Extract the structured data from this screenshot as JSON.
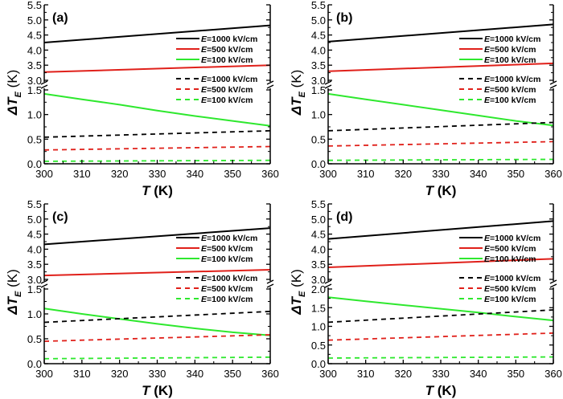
{
  "chart_data": [
    {
      "type": "line",
      "panel_label": "(a)",
      "xlabel_italic": "T",
      "xlabel_rest": " (K)",
      "ylabel_delta": "Δ",
      "ylabel_T": "T",
      "ylabel_sub": "E",
      "ylabel_rest": " (K)",
      "xlim": [
        300,
        360
      ],
      "xticks": [
        "300",
        "310",
        "320",
        "330",
        "340",
        "350",
        "360"
      ],
      "ylim_upper": [
        3.0,
        5.5
      ],
      "yticks_upper": [
        "3.0",
        "3.5",
        "4.0",
        "4.5",
        "5.0",
        "5.5"
      ],
      "ylim_lower": [
        0.0,
        1.5
      ],
      "yticks_lower": [
        "0.0",
        "0.5",
        "1.0",
        "1.5"
      ],
      "axis_break": true,
      "legend_position": "right",
      "series": [
        {
          "name": "E=1000 kV/cm",
          "legend_e": "E",
          "legend_rest": "=1000 kV/cm",
          "color": "#000000",
          "style": "solid",
          "segment": "upper",
          "x": [
            300,
            360
          ],
          "y": [
            4.25,
            4.82
          ]
        },
        {
          "name": "E=500 kV/cm",
          "legend_e": "E",
          "legend_rest": "=500 kV/cm",
          "color": "#e0201a",
          "style": "solid",
          "segment": "upper",
          "x": [
            300,
            360
          ],
          "y": [
            3.27,
            3.5
          ]
        },
        {
          "name": "E=100 kV/cm",
          "legend_e": "E",
          "legend_rest": "=100 kV/cm",
          "color": "#2ee82e",
          "style": "solid",
          "segment": "lower",
          "x": [
            300,
            310,
            320,
            330,
            340,
            350,
            360
          ],
          "y": [
            1.42,
            1.31,
            1.2,
            1.08,
            0.97,
            0.87,
            0.77
          ]
        },
        {
          "name": "E=1000 kV/cm",
          "legend_e": "E",
          "legend_rest": "=1000 kV/cm",
          "color": "#000000",
          "style": "dashed",
          "segment": "lower",
          "x": [
            300,
            360
          ],
          "y": [
            0.54,
            0.67
          ]
        },
        {
          "name": "E=500 kV/cm",
          "legend_e": "E",
          "legend_rest": "=500 kV/cm",
          "color": "#e0201a",
          "style": "dashed",
          "segment": "lower",
          "x": [
            300,
            360
          ],
          "y": [
            0.28,
            0.35
          ]
        },
        {
          "name": "E=100 kV/cm",
          "legend_e": "E",
          "legend_rest": "=100 kV/cm",
          "color": "#2ee82e",
          "style": "dashed",
          "segment": "lower",
          "x": [
            300,
            360
          ],
          "y": [
            0.05,
            0.07
          ]
        }
      ]
    },
    {
      "type": "line",
      "panel_label": "(b)",
      "xlabel_italic": "T",
      "xlabel_rest": " (K)",
      "ylabel_delta": "Δ",
      "ylabel_T": "T",
      "ylabel_sub": "E",
      "ylabel_rest": " (K)",
      "xlim": [
        300,
        360
      ],
      "xticks": [
        "300",
        "310",
        "320",
        "330",
        "340",
        "350",
        "360"
      ],
      "ylim_upper": [
        3.0,
        5.5
      ],
      "yticks_upper": [
        "3.0",
        "3.5",
        "4.0",
        "4.5",
        "5.0",
        "5.5"
      ],
      "ylim_lower": [
        0.0,
        1.5
      ],
      "yticks_lower": [
        "0.0",
        "0.5",
        "1.0",
        "1.5"
      ],
      "axis_break": true,
      "legend_position": "right",
      "series": [
        {
          "name": "E=1000 kV/cm",
          "legend_e": "E",
          "legend_rest": "=1000 kV/cm",
          "color": "#000000",
          "style": "solid",
          "segment": "upper",
          "x": [
            300,
            360
          ],
          "y": [
            4.28,
            4.85
          ]
        },
        {
          "name": "E=500 kV/cm",
          "legend_e": "E",
          "legend_rest": "=500 kV/cm",
          "color": "#e0201a",
          "style": "solid",
          "segment": "upper",
          "x": [
            300,
            360
          ],
          "y": [
            3.3,
            3.56
          ]
        },
        {
          "name": "E=100 kV/cm",
          "legend_e": "E",
          "legend_rest": "=100 kV/cm",
          "color": "#2ee82e",
          "style": "solid",
          "segment": "lower",
          "x": [
            300,
            310,
            320,
            330,
            340,
            350,
            360
          ],
          "y": [
            1.42,
            1.31,
            1.2,
            1.09,
            0.98,
            0.87,
            0.78
          ]
        },
        {
          "name": "E=1000 kV/cm",
          "legend_e": "E",
          "legend_rest": "=1000 kV/cm",
          "color": "#000000",
          "style": "dashed",
          "segment": "lower",
          "x": [
            300,
            360
          ],
          "y": [
            0.67,
            0.84
          ]
        },
        {
          "name": "E=500 kV/cm",
          "legend_e": "E",
          "legend_rest": "=500 kV/cm",
          "color": "#e0201a",
          "style": "dashed",
          "segment": "lower",
          "x": [
            300,
            360
          ],
          "y": [
            0.36,
            0.45
          ]
        },
        {
          "name": "E=100 kV/cm",
          "legend_e": "E",
          "legend_rest": "=100 kV/cm",
          "color": "#2ee82e",
          "style": "dashed",
          "segment": "lower",
          "x": [
            300,
            360
          ],
          "y": [
            0.07,
            0.09
          ]
        }
      ]
    },
    {
      "type": "line",
      "panel_label": "(c)",
      "xlabel_italic": "T",
      "xlabel_rest": " (K)",
      "ylabel_delta": "Δ",
      "ylabel_T": "T",
      "ylabel_sub": "E",
      "ylabel_rest": " (K)",
      "xlim": [
        300,
        360
      ],
      "xticks": [
        "300",
        "310",
        "320",
        "330",
        "340",
        "350",
        "360"
      ],
      "ylim_upper": [
        3.0,
        5.5
      ],
      "yticks_upper": [
        "3.0",
        "3.5",
        "4.0",
        "4.5",
        "5.0",
        "5.5"
      ],
      "ylim_lower": [
        0.0,
        1.5
      ],
      "yticks_lower": [
        "0.0",
        "0.5",
        "1.0",
        "1.5"
      ],
      "axis_break": true,
      "legend_position": "right",
      "series": [
        {
          "name": "E=1000 kV/cm",
          "legend_e": "E",
          "legend_rest": "=1000 kV/cm",
          "color": "#000000",
          "style": "solid",
          "segment": "upper",
          "x": [
            300,
            360
          ],
          "y": [
            4.16,
            4.7
          ]
        },
        {
          "name": "E=500 kV/cm",
          "legend_e": "E",
          "legend_rest": "=500 kV/cm",
          "color": "#e0201a",
          "style": "solid",
          "segment": "upper",
          "x": [
            300,
            360
          ],
          "y": [
            3.13,
            3.32
          ]
        },
        {
          "name": "E=100 kV/cm",
          "legend_e": "E",
          "legend_rest": "=100 kV/cm",
          "color": "#2ee82e",
          "style": "solid",
          "segment": "lower",
          "x": [
            300,
            310,
            320,
            330,
            340,
            350,
            360
          ],
          "y": [
            1.11,
            1.0,
            0.9,
            0.8,
            0.71,
            0.63,
            0.57
          ]
        },
        {
          "name": "E=1000 kV/cm",
          "legend_e": "E",
          "legend_rest": "=1000 kV/cm",
          "color": "#000000",
          "style": "dashed",
          "segment": "lower",
          "x": [
            300,
            360
          ],
          "y": [
            0.83,
            1.05
          ]
        },
        {
          "name": "E=500 kV/cm",
          "legend_e": "E",
          "legend_rest": "=500 kV/cm",
          "color": "#e0201a",
          "style": "dashed",
          "segment": "lower",
          "x": [
            300,
            360
          ],
          "y": [
            0.45,
            0.58
          ]
        },
        {
          "name": "E=100 kV/cm",
          "legend_e": "E",
          "legend_rest": "=100 kV/cm",
          "color": "#2ee82e",
          "style": "dashed",
          "segment": "lower",
          "x": [
            300,
            360
          ],
          "y": [
            0.1,
            0.13
          ]
        }
      ]
    },
    {
      "type": "line",
      "panel_label": "(d)",
      "xlabel_italic": "T",
      "xlabel_rest": " (K)",
      "ylabel_delta": "Δ",
      "ylabel_T": "T",
      "ylabel_sub": "E",
      "ylabel_rest": " (K)",
      "xlim": [
        300,
        360
      ],
      "xticks": [
        "300",
        "310",
        "320",
        "330",
        "340",
        "350",
        "360"
      ],
      "ylim_upper": [
        3.0,
        5.5
      ],
      "yticks_upper": [
        "3.0",
        "3.5",
        "4.0",
        "4.5",
        "5.0",
        "5.5"
      ],
      "ylim_lower": [
        0.0,
        2.0
      ],
      "yticks_lower": [
        "0.0",
        "0.5",
        "1.0",
        "1.5",
        "2.0"
      ],
      "axis_break": true,
      "legend_position": "right",
      "series": [
        {
          "name": "E=1000 kV/cm",
          "legend_e": "E",
          "legend_rest": "=1000 kV/cm",
          "color": "#000000",
          "style": "solid",
          "segment": "upper",
          "x": [
            300,
            360
          ],
          "y": [
            4.34,
            4.93
          ]
        },
        {
          "name": "E=500 kV/cm",
          "legend_e": "E",
          "legend_rest": "=500 kV/cm",
          "color": "#e0201a",
          "style": "solid",
          "segment": "upper",
          "x": [
            300,
            360
          ],
          "y": [
            3.4,
            3.68
          ]
        },
        {
          "name": "E=100 kV/cm",
          "legend_e": "E",
          "legend_rest": "=100 kV/cm",
          "color": "#2ee82e",
          "style": "solid",
          "segment": "lower",
          "x": [
            300,
            310,
            320,
            330,
            340,
            350,
            360
          ],
          "y": [
            1.78,
            1.67,
            1.57,
            1.47,
            1.37,
            1.26,
            1.16
          ]
        },
        {
          "name": "E=1000 kV/cm",
          "legend_e": "E",
          "legend_rest": "=1000 kV/cm",
          "color": "#000000",
          "style": "dashed",
          "segment": "lower",
          "x": [
            300,
            360
          ],
          "y": [
            1.11,
            1.44
          ]
        },
        {
          "name": "E=500 kV/cm",
          "legend_e": "E",
          "legend_rest": "=500 kV/cm",
          "color": "#e0201a",
          "style": "dashed",
          "segment": "lower",
          "x": [
            300,
            360
          ],
          "y": [
            0.63,
            0.82
          ]
        },
        {
          "name": "E=100 kV/cm",
          "legend_e": "E",
          "legend_rest": "=100 kV/cm",
          "color": "#2ee82e",
          "style": "dashed",
          "segment": "lower",
          "x": [
            300,
            360
          ],
          "y": [
            0.15,
            0.18
          ]
        }
      ]
    }
  ]
}
